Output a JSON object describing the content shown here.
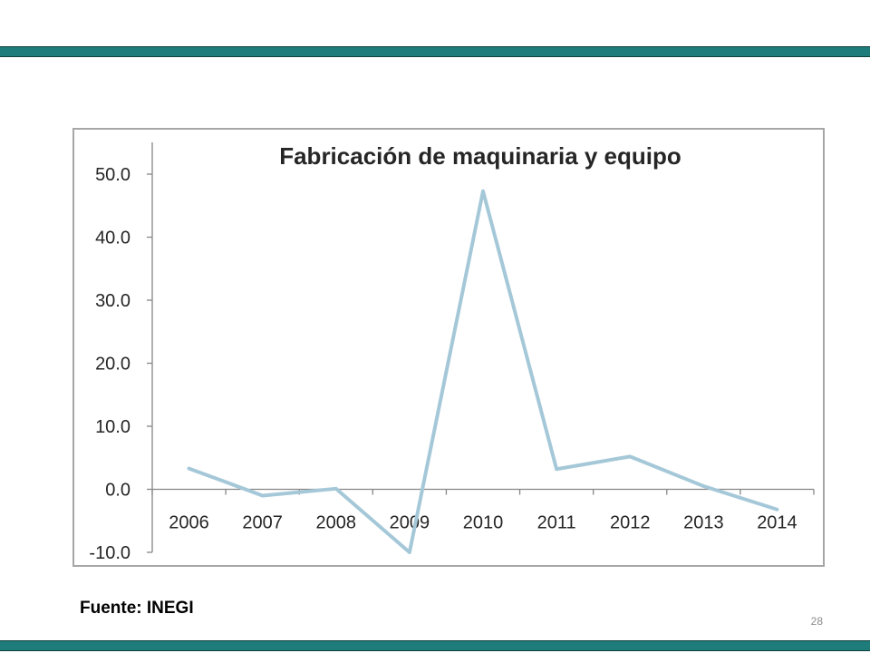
{
  "slide": {
    "source_note": "Fuente: INEGI",
    "page_number": "28",
    "band_color": "#1e7d7a"
  },
  "chart_data": {
    "type": "line",
    "title": "Fabricación de maquinaria y equipo",
    "xlabel": "",
    "ylabel": "",
    "categories": [
      "2006",
      "2007",
      "2008",
      "2009",
      "2010",
      "2011",
      "2012",
      "2013",
      "2014"
    ],
    "series": [
      {
        "values": [
          3.3,
          -1.0,
          0.1,
          -10.0,
          47.3,
          3.2,
          5.2,
          0.5,
          -3.2
        ],
        "color": "#a5c8d8"
      }
    ],
    "yticks": [
      "50.0",
      "40.0",
      "30.0",
      "20.0",
      "10.0",
      "0.0",
      "-10.0"
    ],
    "ylim": [
      -10,
      50
    ],
    "grid": false,
    "legend": "none"
  }
}
